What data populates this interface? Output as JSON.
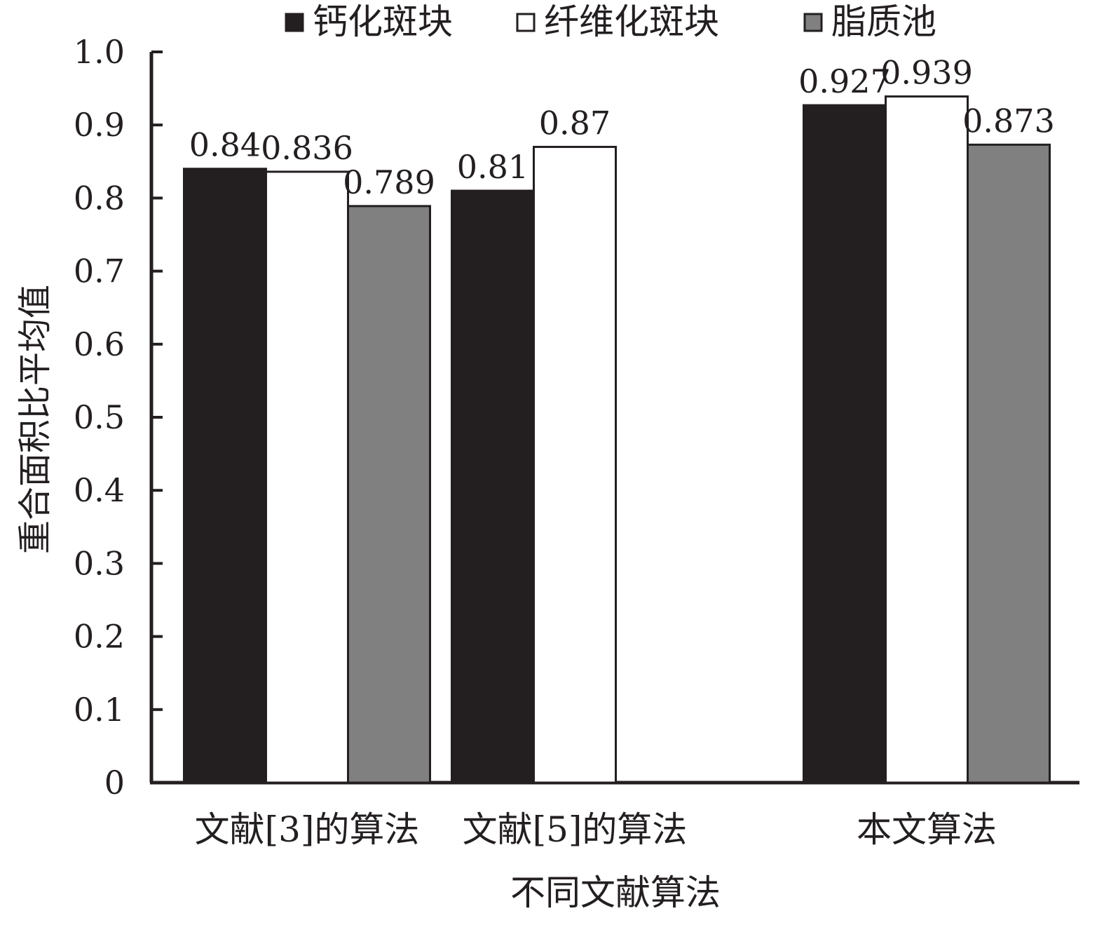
{
  "chart_data": {
    "type": "bar",
    "categories": [
      "文献[3]的算法",
      "文献[5]的算法",
      "本文算法"
    ],
    "series": [
      {
        "name": "钙化斑块",
        "values": [
          0.84,
          0.81,
          0.927
        ],
        "labels": [
          "0.84",
          "0.81",
          "0.927"
        ],
        "color": "#231f20"
      },
      {
        "name": "纤维化斑块",
        "values": [
          0.836,
          0.87,
          0.939
        ],
        "labels": [
          "0.836",
          "0.87",
          "0.939"
        ],
        "color": "#ffffff"
      },
      {
        "name": "脂质池",
        "values": [
          0.789,
          null,
          0.873
        ],
        "labels": [
          "0.789",
          "",
          "0.873"
        ],
        "color": "#808080"
      }
    ],
    "xlabel": "不同文献算法",
    "ylabel": "重合面积比平均值",
    "ylim": [
      0,
      1.0
    ],
    "yticks": [
      "0",
      "0.1",
      "0.2",
      "0.3",
      "0.4",
      "0.5",
      "0.6",
      "0.7",
      "0.8",
      "0.9",
      "1.0"
    ],
    "legend_position": "top",
    "grid": false
  }
}
